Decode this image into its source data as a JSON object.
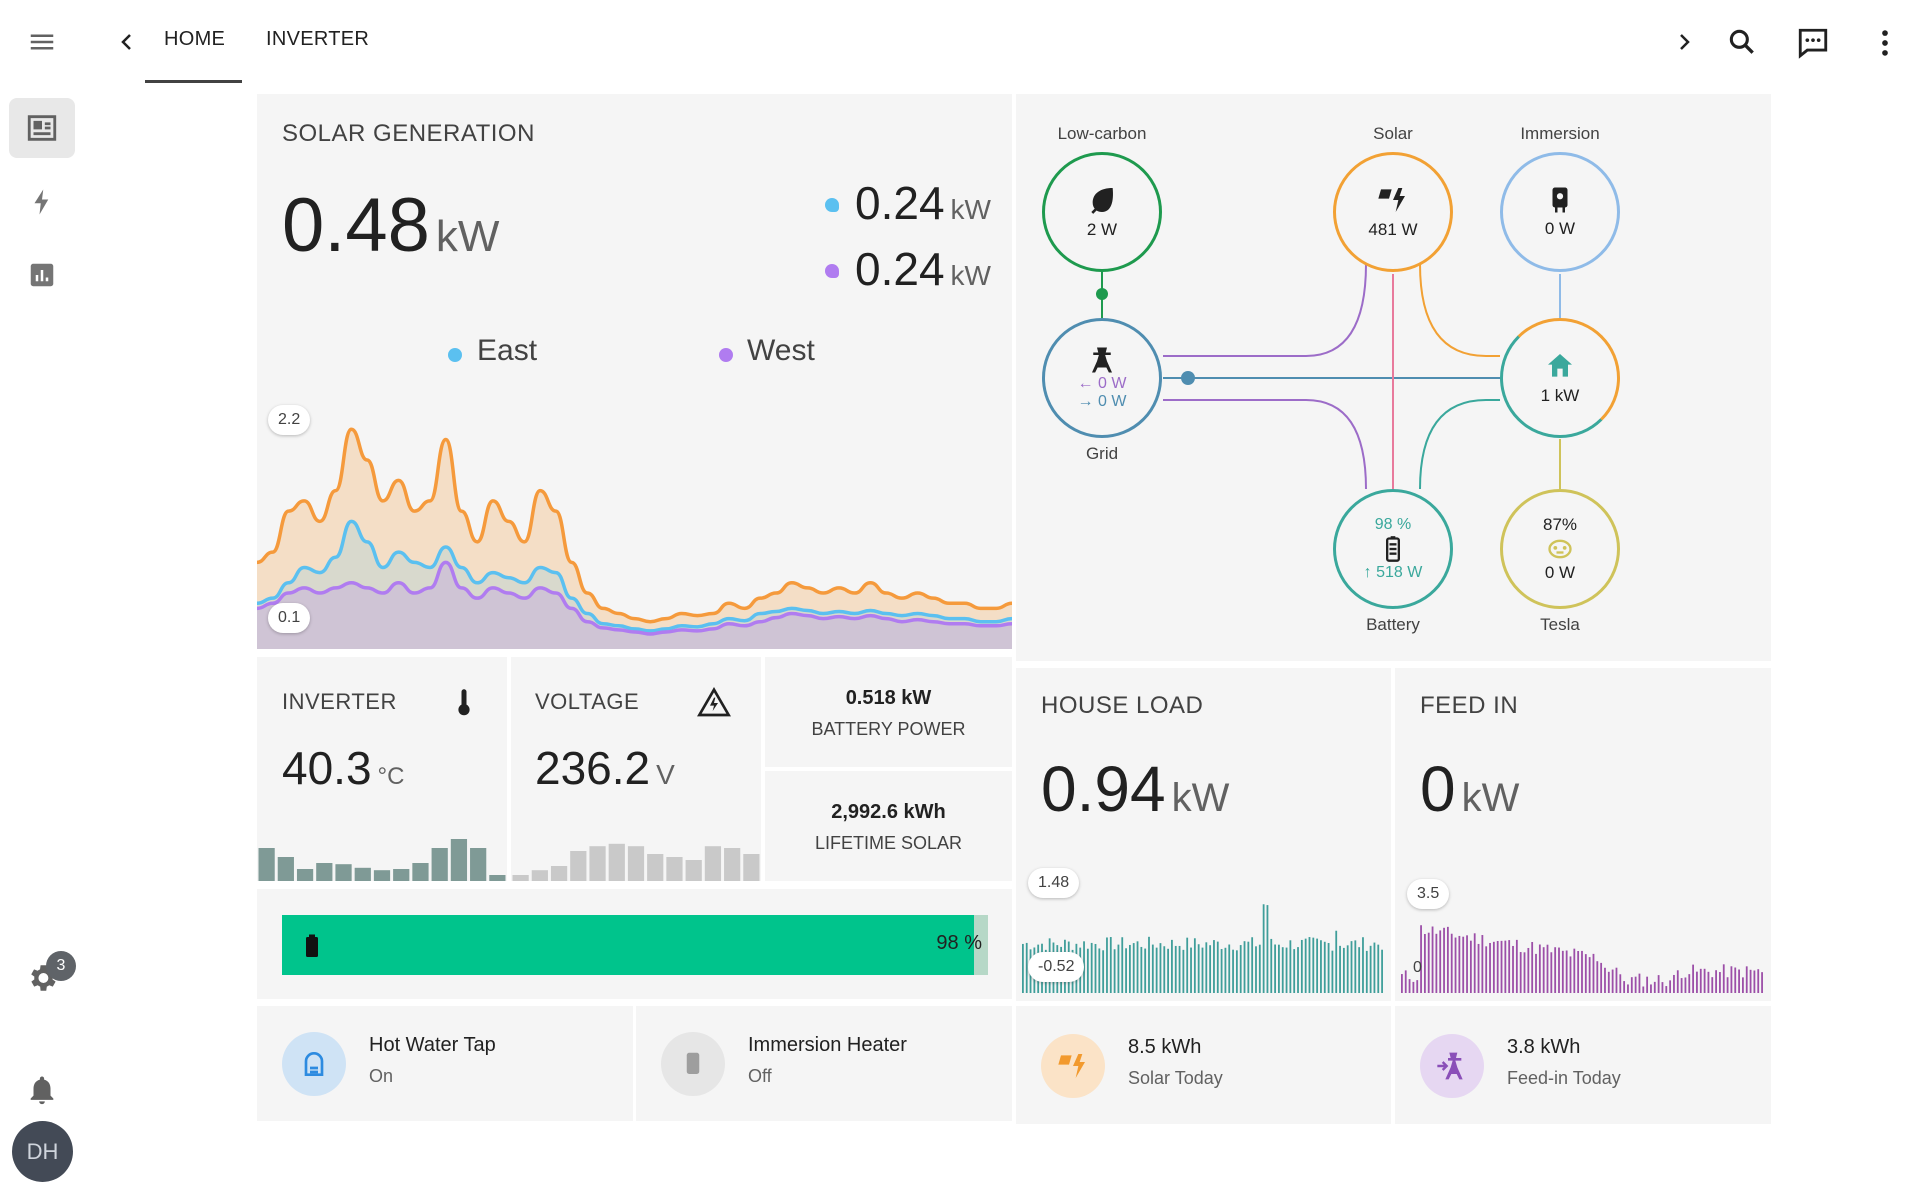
{
  "tabs": [
    {
      "label": "HOME"
    },
    {
      "label": "INVERTER"
    }
  ],
  "sidebar": {
    "notification_badge": "3",
    "avatar_initials": "DH"
  },
  "solar": {
    "title": "SOLAR GENERATION",
    "total_value": "0.48",
    "total_unit": "kW",
    "east_value": "0.24",
    "west_value": "0.24",
    "unit": "kW",
    "legend_east": "East",
    "legend_west": "West",
    "y_max_label": "2.2",
    "y_min_label": "0.1",
    "colors": {
      "total": "#f59a3c",
      "east": "#5bc0f0",
      "west": "#b07cf0"
    }
  },
  "chart_data": {
    "type": "area",
    "x": [
      0,
      1,
      2,
      3,
      4,
      5,
      6,
      7,
      8,
      9,
      10,
      11,
      12,
      13,
      14,
      15,
      16,
      17,
      18,
      19,
      20,
      21,
      22,
      23,
      24,
      25,
      26,
      27,
      28,
      29,
      30,
      31,
      32,
      33,
      34,
      35,
      36,
      37,
      38,
      39,
      40,
      41,
      42,
      43,
      44,
      45,
      46,
      47,
      48
    ],
    "ylim": [
      0.1,
      2.2
    ],
    "series": [
      {
        "name": "Total",
        "values": [
          0.8,
          0.9,
          1.3,
          1.4,
          1.2,
          1.5,
          2.1,
          1.8,
          1.4,
          1.6,
          1.3,
          1.4,
          2.0,
          1.3,
          1.0,
          1.4,
          1.2,
          1.0,
          1.5,
          1.3,
          0.8,
          0.5,
          0.35,
          0.3,
          0.25,
          0.22,
          0.25,
          0.3,
          0.28,
          0.3,
          0.4,
          0.35,
          0.45,
          0.5,
          0.6,
          0.55,
          0.5,
          0.55,
          0.5,
          0.6,
          0.5,
          0.45,
          0.5,
          0.45,
          0.4,
          0.4,
          0.35,
          0.35,
          0.4
        ]
      },
      {
        "name": "East",
        "values": [
          0.4,
          0.45,
          0.6,
          0.75,
          0.7,
          0.85,
          1.2,
          1.0,
          0.75,
          0.9,
          0.8,
          0.75,
          0.95,
          0.75,
          0.6,
          0.7,
          0.65,
          0.6,
          0.75,
          0.7,
          0.45,
          0.3,
          0.2,
          0.18,
          0.15,
          0.13,
          0.15,
          0.18,
          0.17,
          0.2,
          0.25,
          0.23,
          0.3,
          0.32,
          0.35,
          0.33,
          0.3,
          0.32,
          0.3,
          0.33,
          0.3,
          0.28,
          0.3,
          0.28,
          0.25,
          0.25,
          0.22,
          0.22,
          0.25
        ]
      },
      {
        "name": "West",
        "values": [
          0.35,
          0.4,
          0.5,
          0.55,
          0.5,
          0.55,
          0.6,
          0.55,
          0.5,
          0.6,
          0.5,
          0.55,
          0.8,
          0.55,
          0.45,
          0.55,
          0.5,
          0.45,
          0.55,
          0.5,
          0.35,
          0.22,
          0.16,
          0.14,
          0.12,
          0.1,
          0.12,
          0.14,
          0.13,
          0.15,
          0.2,
          0.18,
          0.22,
          0.26,
          0.3,
          0.28,
          0.25,
          0.27,
          0.25,
          0.28,
          0.25,
          0.22,
          0.24,
          0.22,
          0.2,
          0.2,
          0.18,
          0.18,
          0.2
        ]
      }
    ]
  },
  "inverter": {
    "title": "INVERTER",
    "value": "40.3",
    "unit": "°C",
    "bars": [
      0.55,
      0.4,
      0.2,
      0.3,
      0.28,
      0.22,
      0.18,
      0.2,
      0.3,
      0.55,
      0.7,
      0.55,
      0.1
    ]
  },
  "voltage": {
    "title": "VOLTAGE",
    "value": "236.2",
    "unit": "V",
    "bars": [
      0.1,
      0.18,
      0.25,
      0.5,
      0.58,
      0.62,
      0.58,
      0.45,
      0.4,
      0.35,
      0.58,
      0.55,
      0.45
    ]
  },
  "battery_power": {
    "value": "0.518 kW",
    "label": "BATTERY POWER"
  },
  "lifetime_solar": {
    "value": "2,992.6 kWh",
    "label": "LIFETIME SOLAR"
  },
  "battery_bar": {
    "percent": 98,
    "label": "98 %",
    "color": "#00c48c"
  },
  "house_load": {
    "title": "HOUSE LOAD",
    "value": "0.94",
    "unit": "kW",
    "y_max": "1.48",
    "y_min": "-0.52",
    "color": "#3f9e9a"
  },
  "feed_in": {
    "title": "FEED IN",
    "value": "0",
    "unit": "kW",
    "y_max": "3.5",
    "y_min": "0",
    "color": "#9c4fa8"
  },
  "energy_flow": {
    "low_carbon": {
      "label": "Low-carbon",
      "value": "2 W",
      "color": "#1e9a4e"
    },
    "solar": {
      "label": "Solar",
      "value": "481 W",
      "color": "#f2a134"
    },
    "immersion": {
      "label": "Immersion",
      "value": "0 W",
      "color": "#8fbbe8"
    },
    "grid": {
      "label": "Grid",
      "import": "0 W",
      "export": "0 W",
      "color": "#4f8db0"
    },
    "home": {
      "value": "1 kW",
      "color": "#3aa89c"
    },
    "battery": {
      "label": "Battery",
      "soc": "98 %",
      "power": "518 W",
      "color": "#3aa89c"
    },
    "tesla": {
      "label": "Tesla",
      "soc": "87%",
      "value": "0 W",
      "color": "#cfc35a"
    }
  },
  "tiles": {
    "hot_water": {
      "name": "Hot Water Tap",
      "state": "On"
    },
    "immersion": {
      "name": "Immersion Heater",
      "state": "Off"
    },
    "solar_today": {
      "value": "8.5 kWh",
      "label": "Solar Today"
    },
    "feed_today": {
      "value": "3.8 kWh",
      "label": "Feed-in Today"
    }
  }
}
